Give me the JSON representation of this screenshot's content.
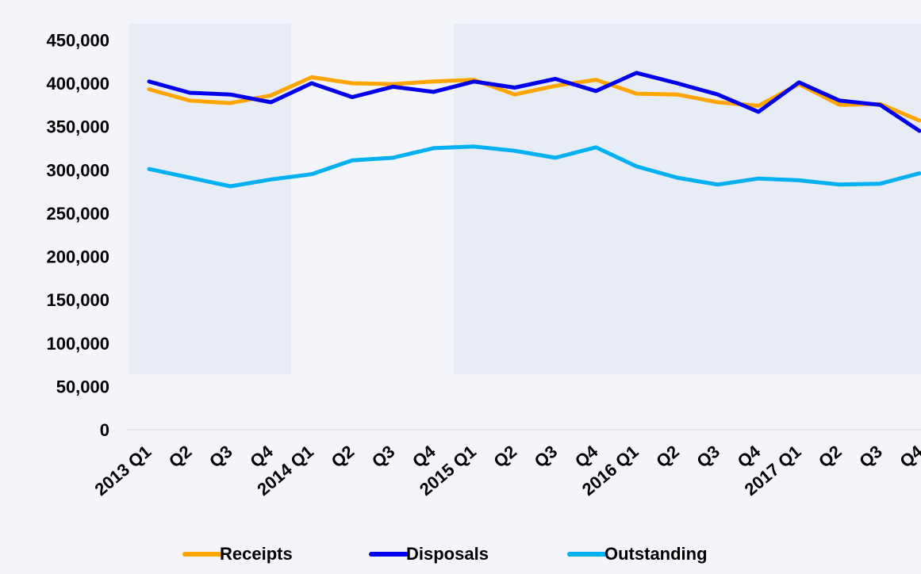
{
  "chart_data": {
    "type": "line",
    "categories": [
      "2013 Q1",
      "Q2",
      "Q3",
      "Q4",
      "2014 Q1",
      "Q2",
      "Q3",
      "Q4",
      "2015 Q1",
      "Q2",
      "Q3",
      "Q4",
      "2016 Q1",
      "Q2",
      "Q3",
      "Q4",
      "2017 Q1",
      "Q2",
      "Q3",
      "Q4"
    ],
    "series": [
      {
        "name": "Receipts",
        "color": "#ffa500",
        "values": [
          393000,
          380000,
          377000,
          386000,
          407000,
          400000,
          399000,
          402000,
          404000,
          387000,
          397000,
          404000,
          388000,
          387000,
          378000,
          374000,
          399000,
          375000,
          376000,
          357000
        ]
      },
      {
        "name": "Disposals",
        "color": "#0000ee",
        "values": [
          402000,
          389000,
          387000,
          378000,
          400000,
          384000,
          396000,
          390000,
          402000,
          395000,
          405000,
          391000,
          412000,
          400000,
          387000,
          367000,
          401000,
          380000,
          375000,
          345000
        ]
      },
      {
        "name": "Outstanding",
        "color": "#00b0f0",
        "values": [
          301000,
          291000,
          281000,
          289000,
          295000,
          311000,
          314000,
          325000,
          327000,
          322000,
          314000,
          326000,
          304000,
          291000,
          283000,
          290000,
          288000,
          283000,
          284000,
          296000
        ]
      }
    ],
    "yticks": [
      "0",
      "50,000",
      "100,000",
      "150,000",
      "200,000",
      "250,000",
      "300,000",
      "350,000",
      "400,000",
      "450,000"
    ],
    "ylim": [
      0,
      450000
    ],
    "shaded_year_bands": [
      "2013",
      "2015",
      "2016",
      "2017"
    ],
    "band_color": "#e8edf5",
    "grid": false,
    "legend_position": "bottom"
  }
}
